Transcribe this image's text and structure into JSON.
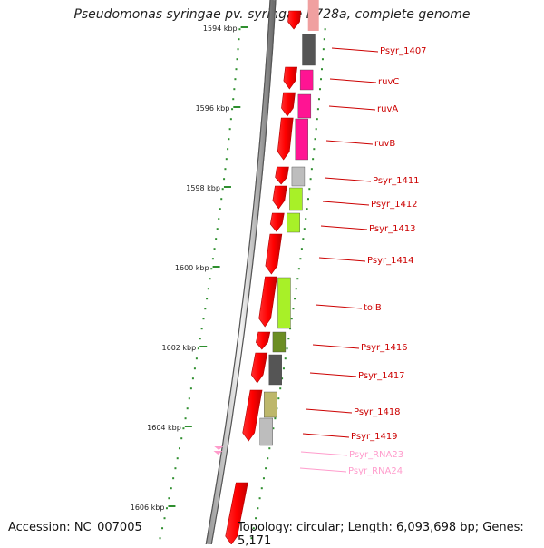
{
  "title": "Pseudomonas syringae pv. syringae B728a, complete genome",
  "footer": {
    "accession": "Accession: NC_007005",
    "stats": "Topology: circular; Length: 6,093,698 bp; Genes: 5,171"
  },
  "colors": {
    "cds": "#ff0000",
    "gene_label": "#cc0000",
    "rna": "#ff9ccc",
    "tick": "#2f8f2f",
    "backbone": "#777777"
  },
  "scale_labels": [
    {
      "label": "1594 kbp",
      "kbp": 1594
    },
    {
      "label": "1596 kbp",
      "kbp": 1596
    },
    {
      "label": "1598 kbp",
      "kbp": 1598
    },
    {
      "label": "1600 kbp",
      "kbp": 1600
    },
    {
      "label": "1602 kbp",
      "kbp": 1602
    },
    {
      "label": "1604 kbp",
      "kbp": 1604
    },
    {
      "label": "1606 kbp",
      "kbp": 1606
    }
  ],
  "features": [
    {
      "label": "Psyr_1407",
      "type": "gene",
      "color": "#555555"
    },
    {
      "label": "ruvC",
      "type": "gene",
      "color": "#ff1493"
    },
    {
      "label": "ruvA",
      "type": "gene",
      "color": "#ff1493"
    },
    {
      "label": "ruvB",
      "type": "gene",
      "color": "#ff1493"
    },
    {
      "label": "Psyr_1411",
      "type": "gene",
      "color": "#bdbdbd"
    },
    {
      "label": "Psyr_1412",
      "type": "gene",
      "color": "#a8f028"
    },
    {
      "label": "Psyr_1413",
      "type": "gene",
      "color": "#a8f028"
    },
    {
      "label": "Psyr_1414",
      "type": "gene",
      "color": ""
    },
    {
      "label": "tolB",
      "type": "gene",
      "color": "#a8f028"
    },
    {
      "label": "Psyr_1416",
      "type": "gene",
      "color": "#6b8e23"
    },
    {
      "label": "Psyr_1417",
      "type": "gene",
      "color": "#555555"
    },
    {
      "label": "Psyr_1418",
      "type": "gene",
      "color": "#bdb76b"
    },
    {
      "label": "Psyr_1419",
      "type": "gene",
      "color": "#bdbdbd"
    },
    {
      "label": "Psyr_RNA23",
      "type": "rna",
      "color": ""
    },
    {
      "label": "Psyr_RNA24",
      "type": "rna",
      "color": ""
    }
  ]
}
